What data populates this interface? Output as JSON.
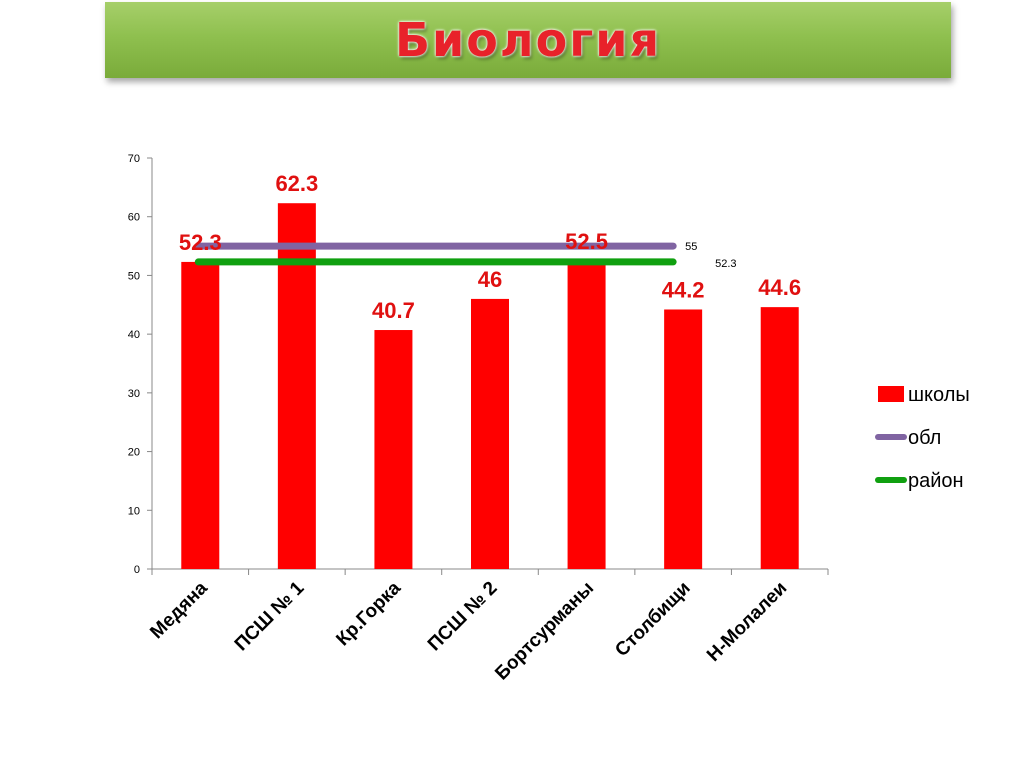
{
  "title": "Биология",
  "chart_data": {
    "type": "bar",
    "categories": [
      "Медяна",
      "ПСШ № 1",
      "Кр.Горка",
      "ПСШ № 2",
      "Бортсурманы",
      "Столбищи",
      "Н-Молалеи"
    ],
    "series": [
      {
        "name": "школы",
        "type": "bar",
        "color": "#ff0000",
        "values": [
          52.3,
          62.3,
          40.7,
          46,
          52.5,
          44.2,
          44.6
        ]
      },
      {
        "name": "обл",
        "type": "line",
        "color": "#8064a2",
        "value": 55,
        "label": "55"
      },
      {
        "name": "район",
        "type": "line",
        "color": "#10a010",
        "value": 52.3,
        "label": "52.3"
      }
    ],
    "data_labels": [
      "52.3",
      "62.3",
      "40.7",
      "46",
      "52.5",
      "44.2",
      "44.6"
    ],
    "y_ticks": [
      "0",
      "10",
      "20",
      "30",
      "40",
      "50",
      "60",
      "70"
    ],
    "ylim": [
      0,
      70
    ],
    "legend_position": "right",
    "grid": false,
    "xlabel": "",
    "ylabel": ""
  }
}
